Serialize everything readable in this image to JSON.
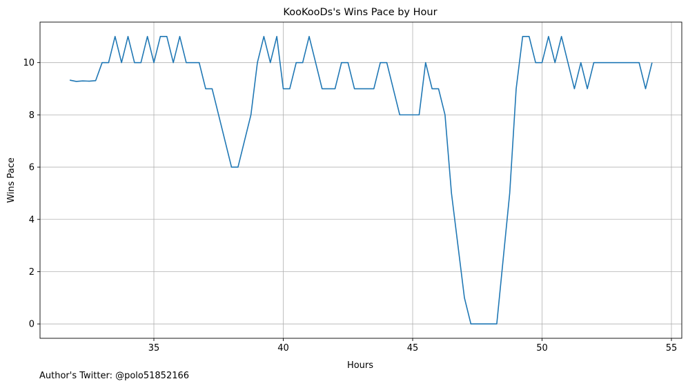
{
  "chart_data": {
    "type": "line",
    "title": "KooKooDs's Wins Pace by Hour",
    "xlabel": "Hours",
    "ylabel": "Wins Pace",
    "xlim": [
      30.6,
      55.4
    ],
    "ylim": [
      -0.55,
      11.55
    ],
    "xticks": [
      35,
      40,
      45,
      50,
      55
    ],
    "yticks": [
      0,
      2,
      4,
      6,
      8,
      10
    ],
    "grid": true,
    "line_color": "#1f77b4",
    "series": [
      {
        "x": [
          31.75,
          32.0,
          32.25,
          32.5,
          32.75,
          33.0,
          33.25,
          33.5,
          33.75,
          34.0,
          34.25,
          34.5,
          34.75,
          35.0,
          35.25,
          35.5,
          35.75,
          36.0,
          36.25,
          36.5,
          36.75,
          37.0,
          37.25,
          37.5,
          37.75,
          38.0,
          38.25,
          38.5,
          38.75,
          39.0,
          39.25,
          39.5,
          39.75,
          40.0,
          40.25,
          40.5,
          40.75,
          41.0,
          41.25,
          41.5,
          41.75,
          42.0,
          42.25,
          42.5,
          42.75,
          43.0,
          43.25,
          43.5,
          43.75,
          44.0,
          44.25,
          44.5,
          44.75,
          45.0,
          45.25,
          45.5,
          45.75,
          46.0,
          46.25,
          46.5,
          46.75,
          47.0,
          47.25,
          47.5,
          47.75,
          48.0,
          48.25,
          48.5,
          48.75,
          49.0,
          49.25,
          49.5,
          49.75,
          50.0,
          50.25,
          50.5,
          50.75,
          51.0,
          51.25,
          51.5,
          51.75,
          52.0,
          52.25,
          52.5,
          52.75,
          53.0,
          53.25,
          53.5,
          53.75,
          54.0,
          54.25
        ],
        "values": [
          9.33,
          9.28,
          9.3,
          9.29,
          9.31,
          10,
          10,
          11,
          10,
          11,
          10,
          10,
          11,
          10,
          11,
          11,
          10,
          11,
          10,
          10,
          10,
          9,
          9,
          8,
          7,
          6,
          6,
          7,
          8,
          10,
          11,
          10,
          11,
          9,
          9,
          10,
          10,
          11,
          10,
          9,
          9,
          9,
          10,
          10,
          9,
          9,
          9,
          9,
          10,
          10,
          9,
          8,
          8,
          8,
          8,
          10,
          9,
          9,
          8,
          5,
          3,
          1,
          0,
          0,
          0,
          0,
          0,
          2.5,
          5,
          9,
          11,
          11,
          10,
          10,
          11,
          10,
          11,
          10,
          9,
          10,
          9,
          10,
          10,
          10,
          10,
          10,
          10,
          10,
          10,
          9,
          10
        ]
      }
    ]
  },
  "footer": {
    "text": "Author's Twitter: @polo51852166"
  }
}
